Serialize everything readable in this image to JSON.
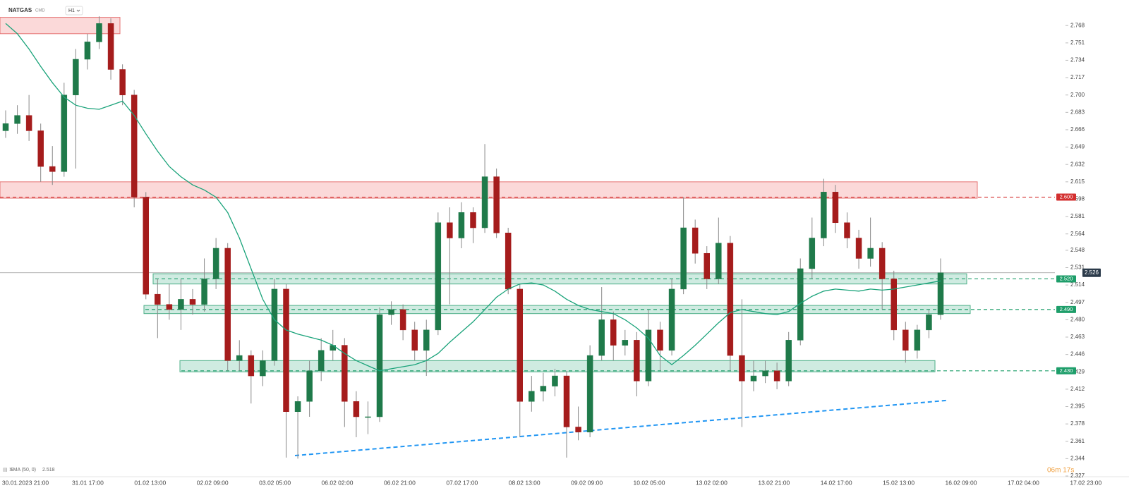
{
  "chart_data": {
    "type": "candlestick",
    "symbol": "NATGAS",
    "market": "CMD",
    "interval": "H1",
    "indicator": "SMA (50, 0)",
    "countdown": "06m 17s",
    "ylim": [
      2.327,
      2.793
    ],
    "yticks": [
      2.327,
      2.344,
      2.361,
      2.378,
      2.395,
      2.412,
      2.429,
      2.446,
      2.463,
      {
        "value": 2.48,
        "label": "2.480"
      },
      2.497,
      2.514,
      2.531,
      2.548,
      2.564,
      2.581,
      2.598,
      2.615,
      2.632,
      2.649,
      2.666,
      2.683,
      {
        "value": 2.7,
        "label": "2.700"
      },
      2.717,
      2.734,
      2.751,
      2.768
    ],
    "xlabels": [
      "30.01.2023 21:00",
      "31.01 17:00",
      "01.02 13:00",
      "02.02 09:00",
      "03.02 05:00",
      "06.02 02:00",
      "06.02 21:00",
      "07.02 17:00",
      "08.02 13:00",
      "09.02 09:00",
      "10.02 05:00",
      "13.02 02:00",
      "13.02 21:00",
      "14.02 17:00",
      "15.02 13:00",
      "16.02 09:00",
      "17.02 04:00",
      "17.02 23:00"
    ],
    "up_color": "#1f7a4a",
    "down_color": "#a51c1c",
    "sma_color": "#1aa37a",
    "candles": [
      [
        2.665,
        2.685,
        2.658,
        2.672
      ],
      [
        2.672,
        2.69,
        2.662,
        2.68
      ],
      [
        2.68,
        2.7,
        2.655,
        2.665
      ],
      [
        2.665,
        2.672,
        2.615,
        2.63
      ],
      [
        2.63,
        2.65,
        2.612,
        2.625
      ],
      [
        2.625,
        2.712,
        2.62,
        2.7
      ],
      [
        2.7,
        2.745,
        2.628,
        2.735
      ],
      [
        2.735,
        2.76,
        2.725,
        2.752
      ],
      [
        2.752,
        2.777,
        2.745,
        2.77
      ],
      [
        2.77,
        2.775,
        2.715,
        2.725
      ],
      [
        2.725,
        2.73,
        2.69,
        2.7
      ],
      [
        2.7,
        2.705,
        2.59,
        2.6
      ],
      [
        2.6,
        2.605,
        2.5,
        2.505
      ],
      [
        2.505,
        2.52,
        2.462,
        2.495
      ],
      [
        2.495,
        2.515,
        2.48,
        2.49
      ],
      [
        2.49,
        2.52,
        2.47,
        2.5
      ],
      [
        2.5,
        2.51,
        2.485,
        2.495
      ],
      [
        2.495,
        2.54,
        2.488,
        2.52
      ],
      [
        2.52,
        2.56,
        2.51,
        2.55
      ],
      [
        2.55,
        2.555,
        2.43,
        2.44
      ],
      [
        2.44,
        2.46,
        2.43,
        2.445
      ],
      [
        2.445,
        2.45,
        2.398,
        2.425
      ],
      [
        2.425,
        2.45,
        2.415,
        2.44
      ],
      [
        2.44,
        2.52,
        2.435,
        2.51
      ],
      [
        2.51,
        2.515,
        2.345,
        2.39
      ],
      [
        2.39,
        2.405,
        2.344,
        2.4
      ],
      [
        2.4,
        2.44,
        2.385,
        2.43
      ],
      [
        2.43,
        2.462,
        2.42,
        2.45
      ],
      [
        2.45,
        2.47,
        2.44,
        2.455
      ],
      [
        2.455,
        2.462,
        2.375,
        2.4
      ],
      [
        2.4,
        2.41,
        2.365,
        2.385
      ],
      [
        2.385,
        2.4,
        2.368,
        2.385
      ],
      [
        2.385,
        2.492,
        2.38,
        2.485
      ],
      [
        2.485,
        2.498,
        2.475,
        2.49
      ],
      [
        2.49,
        2.495,
        2.46,
        2.47
      ],
      [
        2.47,
        2.478,
        2.44,
        2.45
      ],
      [
        2.45,
        2.48,
        2.425,
        2.47
      ],
      [
        2.47,
        2.585,
        2.465,
        2.575
      ],
      [
        2.575,
        2.59,
        2.495,
        2.56
      ],
      [
        2.56,
        2.595,
        2.55,
        2.585
      ],
      [
        2.585,
        2.59,
        2.555,
        2.57
      ],
      [
        2.57,
        2.652,
        2.565,
        2.62
      ],
      [
        2.62,
        2.628,
        2.56,
        2.565
      ],
      [
        2.565,
        2.57,
        2.505,
        2.51
      ],
      [
        2.51,
        2.515,
        2.365,
        2.4
      ],
      [
        2.4,
        2.425,
        2.39,
        2.41
      ],
      [
        2.41,
        2.428,
        2.4,
        2.415
      ],
      [
        2.415,
        2.432,
        2.405,
        2.425
      ],
      [
        2.425,
        2.43,
        2.345,
        2.375
      ],
      [
        2.375,
        2.395,
        2.362,
        2.37
      ],
      [
        2.37,
        2.455,
        2.365,
        2.445
      ],
      [
        2.445,
        2.512,
        2.44,
        2.48
      ],
      [
        2.48,
        2.488,
        2.44,
        2.455
      ],
      [
        2.455,
        2.47,
        2.445,
        2.46
      ],
      [
        2.46,
        2.468,
        2.405,
        2.42
      ],
      [
        2.42,
        2.49,
        2.415,
        2.47
      ],
      [
        2.47,
        2.478,
        2.43,
        2.45
      ],
      [
        2.45,
        2.52,
        2.445,
        2.51
      ],
      [
        2.51,
        2.6,
        2.505,
        2.57
      ],
      [
        2.57,
        2.578,
        2.535,
        2.545
      ],
      [
        2.545,
        2.552,
        2.51,
        2.52
      ],
      [
        2.52,
        2.58,
        2.515,
        2.555
      ],
      [
        2.555,
        2.562,
        2.43,
        2.445
      ],
      [
        2.445,
        2.5,
        2.375,
        2.42
      ],
      [
        2.42,
        2.44,
        2.41,
        2.425
      ],
      [
        2.425,
        2.44,
        2.418,
        2.43
      ],
      [
        2.43,
        2.438,
        2.412,
        2.42
      ],
      [
        2.42,
        2.468,
        2.415,
        2.46
      ],
      [
        2.46,
        2.54,
        2.455,
        2.53
      ],
      [
        2.53,
        2.58,
        2.52,
        2.56
      ],
      [
        2.56,
        2.618,
        2.552,
        2.605
      ],
      [
        2.605,
        2.612,
        2.565,
        2.575
      ],
      [
        2.575,
        2.585,
        2.55,
        2.56
      ],
      [
        2.56,
        2.568,
        2.53,
        2.54
      ],
      [
        2.54,
        2.58,
        2.532,
        2.55
      ],
      [
        2.55,
        2.556,
        2.49,
        2.52
      ],
      [
        2.52,
        2.528,
        2.46,
        2.47
      ],
      [
        2.47,
        2.478,
        2.438,
        2.45
      ],
      [
        2.45,
        2.475,
        2.442,
        2.47
      ],
      [
        2.47,
        2.49,
        2.462,
        2.485
      ],
      [
        2.485,
        2.54,
        2.48,
        2.526
      ]
    ],
    "sma": [
      2.77,
      2.76,
      2.745,
      2.728,
      2.712,
      2.698,
      2.69,
      2.687,
      2.686,
      2.69,
      2.694,
      2.68,
      2.662,
      2.645,
      2.63,
      2.62,
      2.612,
      2.607,
      2.6,
      2.585,
      2.56,
      2.53,
      2.5,
      2.48,
      2.47,
      2.466,
      2.463,
      2.46,
      2.455,
      2.447,
      2.44,
      2.435,
      2.43,
      2.432,
      2.434,
      2.436,
      2.44,
      2.447,
      2.458,
      2.468,
      2.478,
      2.49,
      2.502,
      2.51,
      2.515,
      2.516,
      2.514,
      2.508,
      2.5,
      2.494,
      2.49,
      2.488,
      2.486,
      2.48,
      2.472,
      2.462,
      2.445,
      2.436,
      2.445,
      2.455,
      2.466,
      2.477,
      2.487,
      2.49,
      2.488,
      2.486,
      2.485,
      2.488,
      2.496,
      2.503,
      2.508,
      2.51,
      2.509,
      2.508,
      2.51,
      2.509,
      2.51,
      2.512,
      2.514,
      2.516,
      2.518
    ],
    "zones": [
      {
        "top": 2.776,
        "bottom": 2.76,
        "fill": "rgba(239,83,80,0.22)",
        "stroke": "#e57373"
      },
      {
        "top": 2.615,
        "bottom": 2.599,
        "fill": "rgba(239,83,80,0.22)",
        "stroke": "#e57373"
      },
      {
        "top": 2.525,
        "bottom": 2.515,
        "fill": "rgba(38,166,120,0.22)",
        "stroke": "#4caf87"
      },
      {
        "top": 2.494,
        "bottom": 2.486,
        "fill": "rgba(38,166,120,0.22)",
        "stroke": "#4caf87"
      },
      {
        "top": 2.44,
        "bottom": 2.429,
        "fill": "rgba(38,166,120,0.22)",
        "stroke": "#4caf87"
      }
    ],
    "levels": [
      {
        "value": 2.6,
        "label": "2.600",
        "color": "#d32f2f"
      },
      {
        "value": 2.52,
        "label": "2.520",
        "color": "#1e9e6a"
      },
      {
        "value": 2.49,
        "label": "2.490",
        "color": "#1e9e6a"
      },
      {
        "value": 2.43,
        "label": "2.430",
        "color": "#1e9e6a"
      }
    ],
    "trendline": {
      "start": 2.347,
      "end": 2.401,
      "color": "#2196f3"
    }
  }
}
